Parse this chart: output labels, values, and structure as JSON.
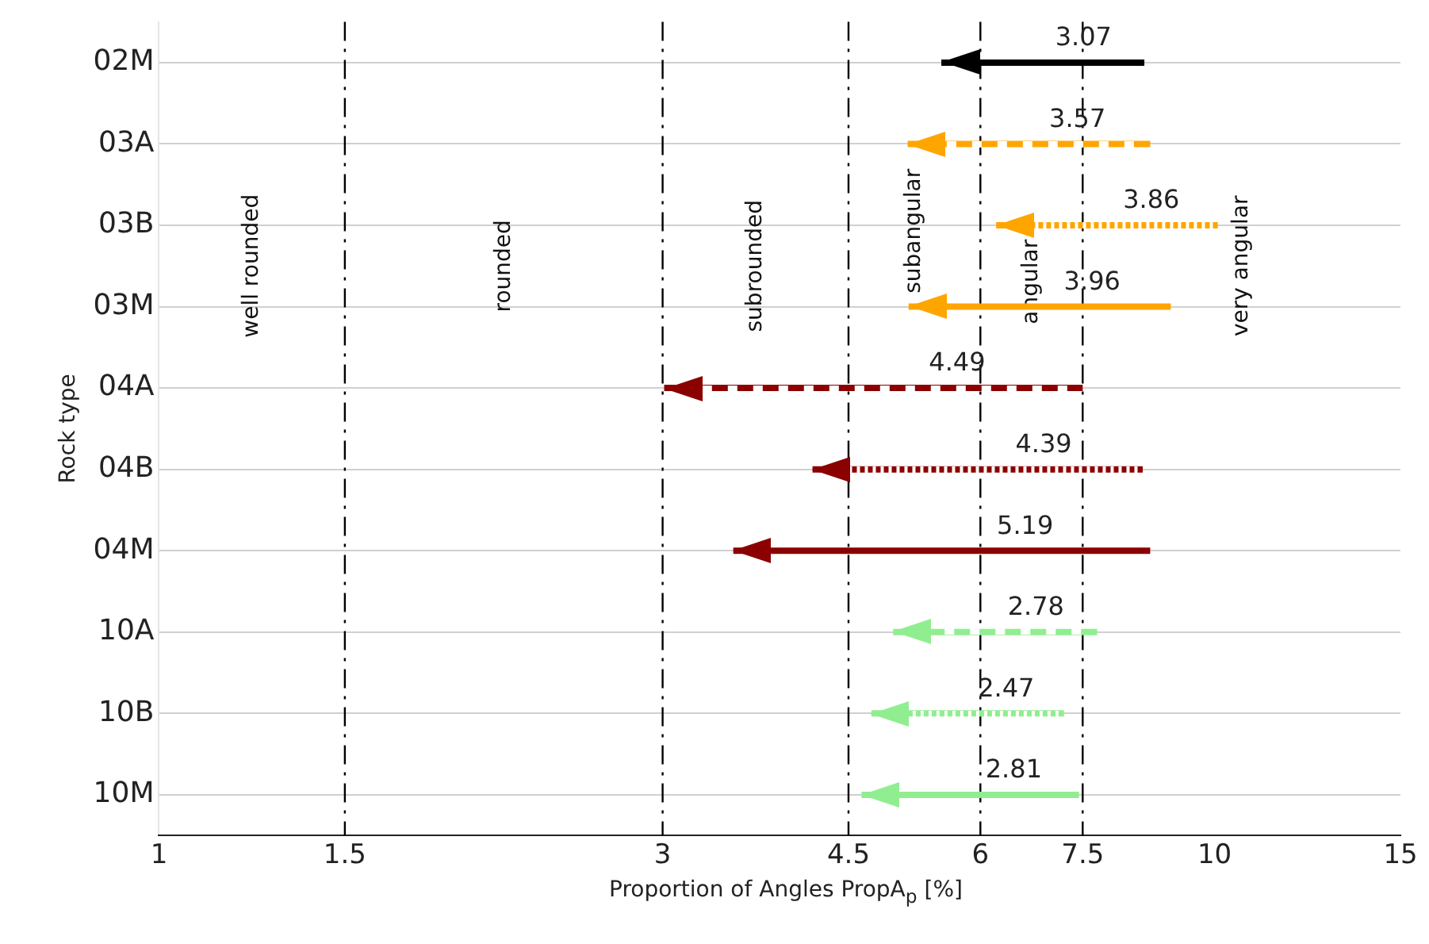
{
  "chart_data": {
    "type": "bar",
    "orientation": "horizontal",
    "xlabel": "Proportion of Angles PropA$_{p}$ [%]",
    "ylabel": "Rock type",
    "categories": [
      "02M",
      "03A",
      "03B",
      "03M",
      "04A",
      "04B",
      "04M",
      "10A",
      "10B",
      "10M"
    ],
    "series": [
      {
        "line_style": "solid",
        "colors": [
          "#000000",
          null,
          null,
          "#ffa500",
          null,
          null,
          "#8b0000",
          null,
          null,
          "#90ee90"
        ],
        "base": [
          5.51,
          null,
          null,
          5.13,
          null,
          null,
          3.5,
          null,
          null,
          4.63
        ],
        "values": [
          3.07,
          null,
          null,
          3.96,
          null,
          null,
          5.19,
          null,
          null,
          2.81
        ]
      },
      {
        "line_style": "dashed",
        "colors": [
          null,
          "#ffa500",
          null,
          null,
          "#8b0000",
          null,
          null,
          "#90ee90",
          null,
          null
        ],
        "base": [
          null,
          5.12,
          null,
          null,
          3.01,
          null,
          null,
          4.96,
          null,
          null
        ],
        "values": [
          null,
          3.57,
          null,
          null,
          4.49,
          null,
          null,
          2.78,
          null,
          null
        ]
      },
      {
        "line_style": "dotted",
        "colors": [
          null,
          null,
          "#ffa500",
          null,
          null,
          "#8b0000",
          null,
          null,
          "#90ee90",
          null
        ],
        "base": [
          null,
          null,
          6.21,
          null,
          null,
          4.16,
          null,
          null,
          4.73,
          null
        ],
        "values": [
          null,
          null,
          3.86,
          null,
          null,
          4.39,
          null,
          null,
          2.47,
          null
        ]
      }
    ],
    "data_labels": true,
    "log": "x",
    "xlim": [
      1,
      15
    ],
    "xticks": [
      1,
      1.5,
      3,
      4.5,
      6,
      7.5,
      10,
      15
    ],
    "grid": "y",
    "legend": false,
    "ref_lines": [
      {
        "axis": "x",
        "value": 1.5,
        "line_style": "dashed"
      },
      {
        "axis": "x",
        "value": 3,
        "line_style": "dashed"
      },
      {
        "axis": "x",
        "value": 4.5,
        "line_style": "dashed"
      },
      {
        "axis": "x",
        "value": 6,
        "line_style": "dashed"
      },
      {
        "axis": "x",
        "value": 7.5,
        "line_style": "dashed"
      }
    ],
    "annotations": [
      "well rounded",
      "rounded",
      "subrounded",
      "subangular",
      "angular",
      "very angular"
    ]
  }
}
